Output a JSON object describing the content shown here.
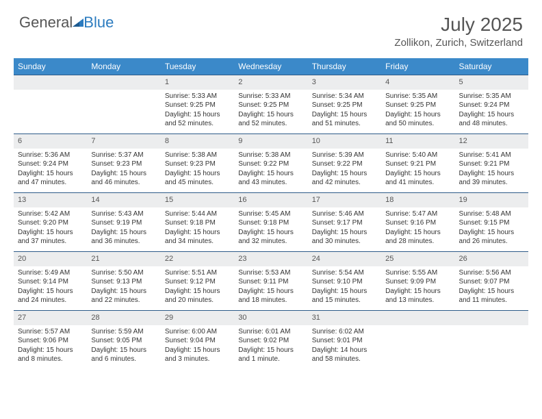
{
  "brand": {
    "part1": "General",
    "part2": "Blue"
  },
  "title": "July 2025",
  "location": "Zollikon, Zurich, Switzerland",
  "colors": {
    "header_bg": "#3b89c9",
    "header_text": "#ffffff",
    "daynum_bg": "#ecedee",
    "row_border": "#2c5a88",
    "brand_gray": "#555555",
    "brand_blue": "#2b7bbf",
    "body_text": "#333333",
    "page_bg": "#ffffff"
  },
  "weekdays": [
    "Sunday",
    "Monday",
    "Tuesday",
    "Wednesday",
    "Thursday",
    "Friday",
    "Saturday"
  ],
  "weeks": [
    [
      null,
      null,
      {
        "n": "1",
        "sr": "5:33 AM",
        "ss": "9:25 PM",
        "dl": "15 hours and 52 minutes."
      },
      {
        "n": "2",
        "sr": "5:33 AM",
        "ss": "9:25 PM",
        "dl": "15 hours and 52 minutes."
      },
      {
        "n": "3",
        "sr": "5:34 AM",
        "ss": "9:25 PM",
        "dl": "15 hours and 51 minutes."
      },
      {
        "n": "4",
        "sr": "5:35 AM",
        "ss": "9:25 PM",
        "dl": "15 hours and 50 minutes."
      },
      {
        "n": "5",
        "sr": "5:35 AM",
        "ss": "9:24 PM",
        "dl": "15 hours and 48 minutes."
      }
    ],
    [
      {
        "n": "6",
        "sr": "5:36 AM",
        "ss": "9:24 PM",
        "dl": "15 hours and 47 minutes."
      },
      {
        "n": "7",
        "sr": "5:37 AM",
        "ss": "9:23 PM",
        "dl": "15 hours and 46 minutes."
      },
      {
        "n": "8",
        "sr": "5:38 AM",
        "ss": "9:23 PM",
        "dl": "15 hours and 45 minutes."
      },
      {
        "n": "9",
        "sr": "5:38 AM",
        "ss": "9:22 PM",
        "dl": "15 hours and 43 minutes."
      },
      {
        "n": "10",
        "sr": "5:39 AM",
        "ss": "9:22 PM",
        "dl": "15 hours and 42 minutes."
      },
      {
        "n": "11",
        "sr": "5:40 AM",
        "ss": "9:21 PM",
        "dl": "15 hours and 41 minutes."
      },
      {
        "n": "12",
        "sr": "5:41 AM",
        "ss": "9:21 PM",
        "dl": "15 hours and 39 minutes."
      }
    ],
    [
      {
        "n": "13",
        "sr": "5:42 AM",
        "ss": "9:20 PM",
        "dl": "15 hours and 37 minutes."
      },
      {
        "n": "14",
        "sr": "5:43 AM",
        "ss": "9:19 PM",
        "dl": "15 hours and 36 minutes."
      },
      {
        "n": "15",
        "sr": "5:44 AM",
        "ss": "9:18 PM",
        "dl": "15 hours and 34 minutes."
      },
      {
        "n": "16",
        "sr": "5:45 AM",
        "ss": "9:18 PM",
        "dl": "15 hours and 32 minutes."
      },
      {
        "n": "17",
        "sr": "5:46 AM",
        "ss": "9:17 PM",
        "dl": "15 hours and 30 minutes."
      },
      {
        "n": "18",
        "sr": "5:47 AM",
        "ss": "9:16 PM",
        "dl": "15 hours and 28 minutes."
      },
      {
        "n": "19",
        "sr": "5:48 AM",
        "ss": "9:15 PM",
        "dl": "15 hours and 26 minutes."
      }
    ],
    [
      {
        "n": "20",
        "sr": "5:49 AM",
        "ss": "9:14 PM",
        "dl": "15 hours and 24 minutes."
      },
      {
        "n": "21",
        "sr": "5:50 AM",
        "ss": "9:13 PM",
        "dl": "15 hours and 22 minutes."
      },
      {
        "n": "22",
        "sr": "5:51 AM",
        "ss": "9:12 PM",
        "dl": "15 hours and 20 minutes."
      },
      {
        "n": "23",
        "sr": "5:53 AM",
        "ss": "9:11 PM",
        "dl": "15 hours and 18 minutes."
      },
      {
        "n": "24",
        "sr": "5:54 AM",
        "ss": "9:10 PM",
        "dl": "15 hours and 15 minutes."
      },
      {
        "n": "25",
        "sr": "5:55 AM",
        "ss": "9:09 PM",
        "dl": "15 hours and 13 minutes."
      },
      {
        "n": "26",
        "sr": "5:56 AM",
        "ss": "9:07 PM",
        "dl": "15 hours and 11 minutes."
      }
    ],
    [
      {
        "n": "27",
        "sr": "5:57 AM",
        "ss": "9:06 PM",
        "dl": "15 hours and 8 minutes."
      },
      {
        "n": "28",
        "sr": "5:59 AM",
        "ss": "9:05 PM",
        "dl": "15 hours and 6 minutes."
      },
      {
        "n": "29",
        "sr": "6:00 AM",
        "ss": "9:04 PM",
        "dl": "15 hours and 3 minutes."
      },
      {
        "n": "30",
        "sr": "6:01 AM",
        "ss": "9:02 PM",
        "dl": "15 hours and 1 minute."
      },
      {
        "n": "31",
        "sr": "6:02 AM",
        "ss": "9:01 PM",
        "dl": "14 hours and 58 minutes."
      },
      null,
      null
    ]
  ],
  "labels": {
    "sunrise": "Sunrise:",
    "sunset": "Sunset:",
    "daylight": "Daylight:"
  }
}
